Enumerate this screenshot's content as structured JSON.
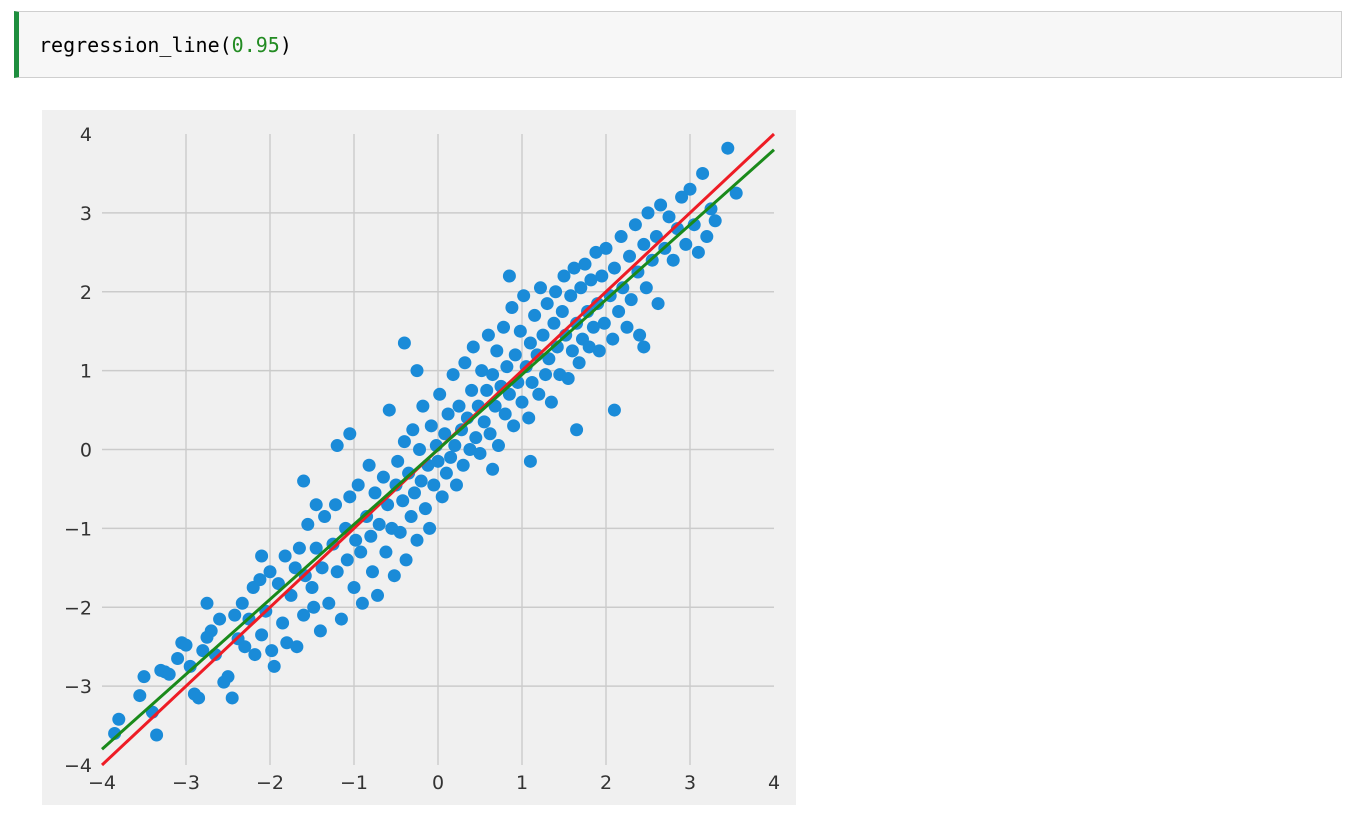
{
  "code_cell": {
    "function_name": "regression_line(",
    "argument": "0.95",
    "closing": ")"
  },
  "colors": {
    "points": "#1a8bd8",
    "regression_line": "#ee1c25",
    "standard_units_line": "#1a8a1a",
    "cell_accent": "#1e8e3e",
    "plot_background": "#f0f0f0",
    "grid": "#cbcbcb"
  },
  "chart_data": {
    "type": "scatter",
    "title": "",
    "xlabel": "",
    "ylabel": "",
    "xlim": [
      -4,
      4
    ],
    "ylim": [
      -4,
      4
    ],
    "grid": true,
    "legend": "none",
    "x_ticks": [
      -4,
      -3,
      -2,
      -1,
      0,
      1,
      2,
      3,
      4
    ],
    "y_ticks": [
      -4,
      -3,
      -2,
      -1,
      0,
      1,
      2,
      3,
      4
    ],
    "x_tick_labels": [
      "−4",
      "−3",
      "−2",
      "−1",
      "0",
      "1",
      "2",
      "3",
      "4"
    ],
    "y_tick_labels": [
      "−4",
      "−3",
      "−2",
      "−1",
      "0",
      "1",
      "2",
      "3",
      "4"
    ],
    "correlation": 0.95,
    "lines": [
      {
        "slope": 1.0,
        "intercept": 0,
        "color": "#ee1c25"
      },
      {
        "slope": 0.95,
        "intercept": 0,
        "color": "#1a8a1a"
      }
    ],
    "points": [
      [
        -3.85,
        -3.6
      ],
      [
        -3.8,
        -3.42
      ],
      [
        -3.55,
        -3.12
      ],
      [
        -3.5,
        -2.88
      ],
      [
        -3.4,
        -3.33
      ],
      [
        -3.35,
        -3.62
      ],
      [
        -3.3,
        -2.8
      ],
      [
        -3.25,
        -2.82
      ],
      [
        -3.2,
        -2.85
      ],
      [
        -3.1,
        -2.65
      ],
      [
        -3.05,
        -2.45
      ],
      [
        -3.0,
        -2.48
      ],
      [
        -2.95,
        -2.75
      ],
      [
        -2.9,
        -3.1
      ],
      [
        -2.85,
        -3.15
      ],
      [
        -2.8,
        -2.55
      ],
      [
        -2.75,
        -2.38
      ],
      [
        -2.7,
        -2.3
      ],
      [
        -2.65,
        -2.6
      ],
      [
        -2.6,
        -2.15
      ],
      [
        -2.55,
        -2.95
      ],
      [
        -2.5,
        -2.88
      ],
      [
        -2.45,
        -3.15
      ],
      [
        -2.42,
        -2.1
      ],
      [
        -2.38,
        -2.4
      ],
      [
        -2.33,
        -1.95
      ],
      [
        -2.3,
        -2.5
      ],
      [
        -2.25,
        -2.15
      ],
      [
        -2.2,
        -1.75
      ],
      [
        -2.18,
        -2.6
      ],
      [
        -2.12,
        -1.65
      ],
      [
        -2.1,
        -2.35
      ],
      [
        -2.05,
        -2.05
      ],
      [
        -2.0,
        -1.55
      ],
      [
        -1.98,
        -2.55
      ],
      [
        -1.95,
        -2.75
      ],
      [
        -1.9,
        -1.7
      ],
      [
        -1.85,
        -2.2
      ],
      [
        -1.82,
        -1.35
      ],
      [
        -1.8,
        -2.45
      ],
      [
        -1.75,
        -1.85
      ],
      [
        -1.7,
        -1.5
      ],
      [
        -1.68,
        -2.5
      ],
      [
        -1.65,
        -1.25
      ],
      [
        -1.6,
        -2.1
      ],
      [
        -1.58,
        -1.6
      ],
      [
        -1.55,
        -0.95
      ],
      [
        -1.5,
        -1.75
      ],
      [
        -1.48,
        -2.0
      ],
      [
        -1.45,
        -1.25
      ],
      [
        -1.4,
        -2.3
      ],
      [
        -1.38,
        -1.5
      ],
      [
        -1.35,
        -0.85
      ],
      [
        -1.3,
        -1.95
      ],
      [
        -1.25,
        -1.2
      ],
      [
        -1.22,
        -0.7
      ],
      [
        -1.2,
        -1.55
      ],
      [
        -1.15,
        -2.15
      ],
      [
        -1.1,
        -1.0
      ],
      [
        -1.08,
        -1.4
      ],
      [
        -1.05,
        -0.6
      ],
      [
        -1.0,
        -1.75
      ],
      [
        -0.98,
        -1.15
      ],
      [
        -0.95,
        -0.45
      ],
      [
        -0.92,
        -1.3
      ],
      [
        -0.9,
        -1.95
      ],
      [
        -0.85,
        -0.85
      ],
      [
        -0.82,
        -0.2
      ],
      [
        -0.8,
        -1.1
      ],
      [
        -0.78,
        -1.55
      ],
      [
        -0.75,
        -0.55
      ],
      [
        -0.72,
        -1.85
      ],
      [
        -0.7,
        -0.95
      ],
      [
        -0.65,
        -0.35
      ],
      [
        -0.62,
        -1.3
      ],
      [
        -0.6,
        -0.7
      ],
      [
        -0.58,
        0.5
      ],
      [
        -0.55,
        -1.0
      ],
      [
        -0.52,
        -1.6
      ],
      [
        -0.5,
        -0.45
      ],
      [
        -0.48,
        -0.15
      ],
      [
        -0.45,
        -1.05
      ],
      [
        -0.42,
        -0.65
      ],
      [
        -0.4,
        0.1
      ],
      [
        -0.38,
        -1.4
      ],
      [
        -0.35,
        -0.3
      ],
      [
        -0.32,
        -0.85
      ],
      [
        -0.3,
        0.25
      ],
      [
        -0.28,
        -0.55
      ],
      [
        -0.25,
        -1.15
      ],
      [
        -0.22,
        0.0
      ],
      [
        -0.2,
        -0.4
      ],
      [
        -0.18,
        0.55
      ],
      [
        -0.15,
        -0.75
      ],
      [
        -0.12,
        -0.2
      ],
      [
        -0.1,
        -1.0
      ],
      [
        -0.08,
        0.3
      ],
      [
        -0.05,
        -0.45
      ],
      [
        -0.02,
        0.05
      ],
      [
        0.0,
        -0.15
      ],
      [
        0.02,
        0.7
      ],
      [
        0.05,
        -0.6
      ],
      [
        0.08,
        0.2
      ],
      [
        0.1,
        -0.3
      ],
      [
        0.12,
        0.45
      ],
      [
        0.15,
        -0.1
      ],
      [
        0.18,
        0.95
      ],
      [
        0.2,
        0.05
      ],
      [
        0.22,
        -0.45
      ],
      [
        0.25,
        0.55
      ],
      [
        0.28,
        0.25
      ],
      [
        0.3,
        -0.2
      ],
      [
        0.32,
        1.1
      ],
      [
        0.35,
        0.4
      ],
      [
        0.38,
        0.0
      ],
      [
        0.4,
        0.75
      ],
      [
        0.42,
        1.3
      ],
      [
        0.45,
        0.15
      ],
      [
        0.48,
        0.55
      ],
      [
        0.5,
        -0.05
      ],
      [
        0.52,
        1.0
      ],
      [
        0.55,
        0.35
      ],
      [
        0.58,
        0.75
      ],
      [
        0.6,
        1.45
      ],
      [
        0.62,
        0.2
      ],
      [
        0.65,
        0.95
      ],
      [
        0.68,
        0.55
      ],
      [
        0.7,
        1.25
      ],
      [
        0.72,
        0.05
      ],
      [
        0.75,
        0.8
      ],
      [
        0.78,
        1.55
      ],
      [
        0.8,
        0.45
      ],
      [
        0.82,
        1.05
      ],
      [
        0.85,
        0.7
      ],
      [
        0.88,
        1.8
      ],
      [
        0.9,
        0.3
      ],
      [
        0.92,
        1.2
      ],
      [
        0.95,
        0.85
      ],
      [
        0.98,
        1.5
      ],
      [
        1.0,
        0.6
      ],
      [
        1.02,
        1.95
      ],
      [
        1.05,
        1.05
      ],
      [
        1.08,
        0.4
      ],
      [
        1.1,
        1.35
      ],
      [
        1.12,
        0.85
      ],
      [
        1.15,
        1.7
      ],
      [
        1.18,
        1.2
      ],
      [
        1.2,
        0.7
      ],
      [
        1.22,
        2.05
      ],
      [
        1.25,
        1.45
      ],
      [
        1.28,
        0.95
      ],
      [
        1.3,
        1.85
      ],
      [
        1.32,
        1.15
      ],
      [
        1.35,
        0.6
      ],
      [
        1.38,
        1.6
      ],
      [
        1.4,
        2.0
      ],
      [
        1.42,
        1.3
      ],
      [
        1.45,
        0.95
      ],
      [
        1.48,
        1.75
      ],
      [
        1.5,
        2.2
      ],
      [
        1.52,
        1.45
      ],
      [
        1.55,
        0.9
      ],
      [
        1.58,
        1.95
      ],
      [
        1.6,
        1.25
      ],
      [
        1.62,
        2.3
      ],
      [
        1.65,
        1.6
      ],
      [
        1.68,
        1.1
      ],
      [
        1.7,
        2.05
      ],
      [
        1.72,
        1.4
      ],
      [
        1.75,
        2.35
      ],
      [
        1.78,
        1.75
      ],
      [
        1.8,
        1.3
      ],
      [
        1.82,
        2.15
      ],
      [
        1.85,
        1.55
      ],
      [
        1.88,
        2.5
      ],
      [
        1.9,
        1.85
      ],
      [
        1.92,
        1.25
      ],
      [
        1.95,
        2.2
      ],
      [
        1.98,
        1.6
      ],
      [
        2.0,
        2.55
      ],
      [
        2.05,
        1.95
      ],
      [
        2.08,
        1.4
      ],
      [
        2.1,
        2.3
      ],
      [
        2.15,
        1.75
      ],
      [
        2.18,
        2.7
      ],
      [
        2.2,
        2.05
      ],
      [
        2.25,
        1.55
      ],
      [
        2.28,
        2.45
      ],
      [
        2.3,
        1.9
      ],
      [
        2.35,
        2.85
      ],
      [
        2.38,
        2.25
      ],
      [
        2.4,
        1.45
      ],
      [
        2.45,
        2.6
      ],
      [
        2.48,
        2.05
      ],
      [
        2.5,
        3.0
      ],
      [
        2.55,
        2.4
      ],
      [
        2.6,
        2.7
      ],
      [
        2.62,
        1.85
      ],
      [
        2.65,
        3.1
      ],
      [
        2.7,
        2.55
      ],
      [
        2.75,
        2.95
      ],
      [
        2.8,
        2.4
      ],
      [
        2.85,
        2.8
      ],
      [
        2.9,
        3.2
      ],
      [
        2.95,
        2.6
      ],
      [
        3.0,
        3.3
      ],
      [
        3.05,
        2.85
      ],
      [
        3.1,
        2.5
      ],
      [
        3.15,
        3.5
      ],
      [
        3.2,
        2.7
      ],
      [
        3.25,
        3.05
      ],
      [
        3.3,
        2.9
      ],
      [
        3.45,
        3.82
      ],
      [
        3.55,
        3.25
      ],
      [
        -1.6,
        -0.4
      ],
      [
        -1.05,
        0.2
      ],
      [
        -0.4,
        1.35
      ],
      [
        1.65,
        0.25
      ],
      [
        -2.1,
        -1.35
      ],
      [
        -1.2,
        0.05
      ],
      [
        0.85,
        2.2
      ],
      [
        2.1,
        0.5
      ],
      [
        -0.25,
        1.0
      ],
      [
        0.65,
        -0.25
      ],
      [
        1.1,
        -0.15
      ],
      [
        -2.75,
        -1.95
      ],
      [
        -1.45,
        -0.7
      ],
      [
        2.45,
        1.3
      ]
    ]
  }
}
